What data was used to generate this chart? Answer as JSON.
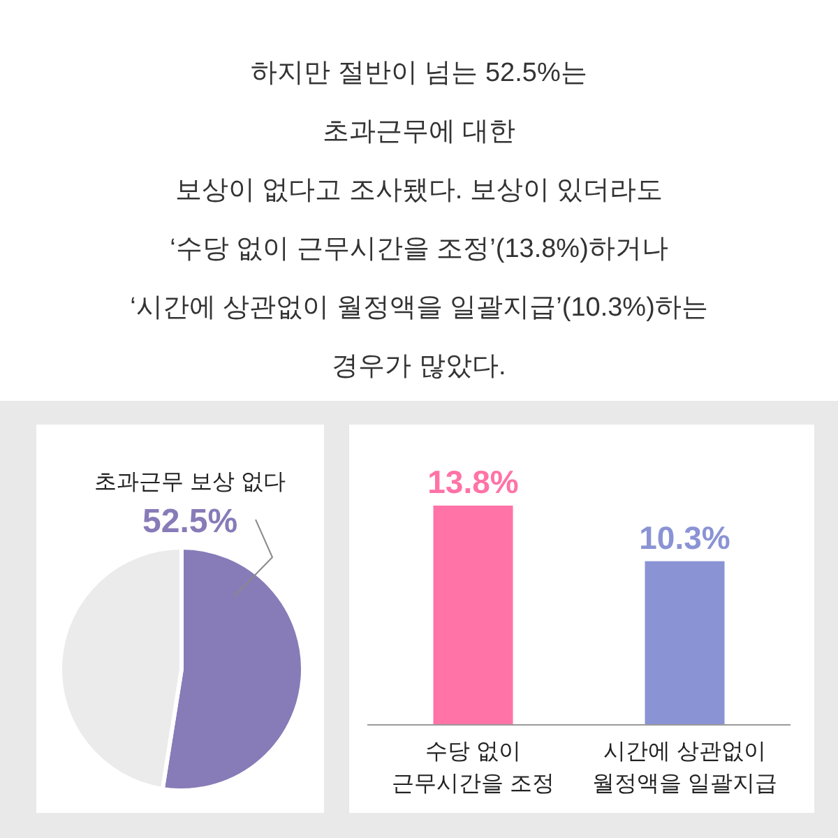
{
  "chart_data": [
    {
      "type": "other",
      "annotations": [
        "하지만 절반이 넘는 52.5%는",
        "초과근무에 대한",
        "보상이 없다고 조사됐다. 보상이 있더라도",
        "‘수당 없이 근무시간을 조정’(13.8%)하거나",
        "‘시간에 상관없이 월정액을 일괄지급’(10.3%)하는",
        "경우가 많았다."
      ]
    },
    {
      "type": "pie",
      "categories": [
        "초과근무 보상 없다",
        null
      ],
      "values": [
        52.5,
        47.5
      ],
      "colors": [
        "#877bb8",
        "#ebebeb"
      ],
      "value_labels": [
        "52.5%",
        null
      ]
    },
    {
      "type": "bar",
      "categories": [
        "수당 없이\n근무시간을 조정",
        "시간에 상관없이\n월정액을 일괄지급"
      ],
      "values": [
        13.8,
        10.3
      ],
      "colors": [
        "#ff73a7",
        "#8a93d4"
      ],
      "value_labels": [
        "13.8%",
        "10.3%"
      ]
    }
  ]
}
